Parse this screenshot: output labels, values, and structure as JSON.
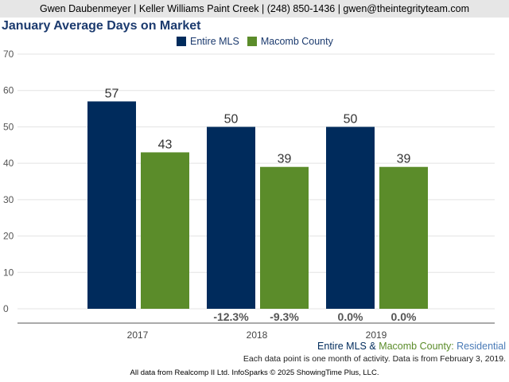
{
  "header": {
    "banner": "Gwen Daubenmeyer | Keller Williams Paint Creek | (248) 850-1436 | gwen@theintegrityteam.com"
  },
  "chart_data": {
    "type": "bar",
    "title": "January Average Days on Market",
    "categories": [
      "2017",
      "2018",
      "2019"
    ],
    "series": [
      {
        "name": "Entire MLS",
        "color": "#002b5c",
        "values": [
          57,
          50,
          50
        ],
        "changes": [
          "",
          "-12.3%",
          "0.0%"
        ]
      },
      {
        "name": "Macomb County",
        "color": "#5b8c2a",
        "values": [
          43,
          39,
          39
        ],
        "changes": [
          "",
          "-9.3%",
          "0.0%"
        ]
      }
    ],
    "ylim": [
      0,
      70
    ],
    "yticks": [
      0,
      10,
      20,
      30,
      40,
      50,
      60,
      70
    ],
    "grid": true,
    "legend": "top-center"
  },
  "footer": {
    "series_a": "Entire MLS",
    "amp": " & ",
    "series_b": "Macomb County",
    "colon": ": ",
    "category": "Residential",
    "note": "Each data point is one month of activity. Data is from February 3, 2019.",
    "source": "All data from Realcomp II Ltd. InfoSparks © 2025 ShowingTime Plus, LLC."
  },
  "colors": {
    "title": "#1b3a6e",
    "entire_mls": "#002b5c",
    "macomb": "#5b8c2a",
    "category_text": "#4a7bb7"
  }
}
